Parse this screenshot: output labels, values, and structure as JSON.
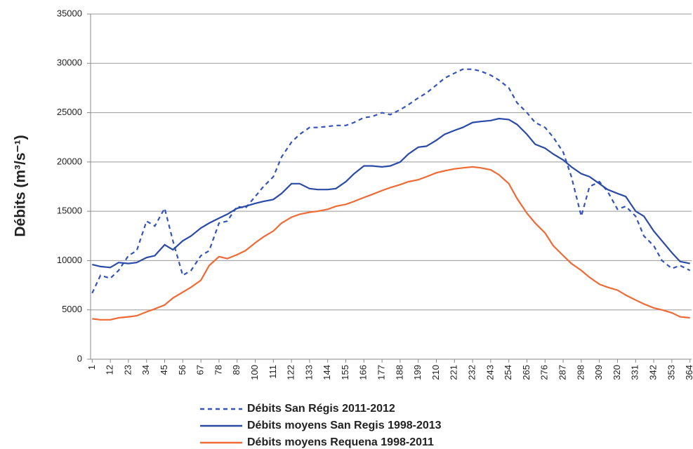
{
  "chart_data": {
    "type": "line",
    "y_label": "Débits (m³/s⁻¹)",
    "x": [
      1,
      6,
      12,
      17,
      23,
      28,
      34,
      39,
      45,
      50,
      56,
      61,
      67,
      72,
      78,
      83,
      89,
      94,
      100,
      105,
      111,
      116,
      122,
      127,
      133,
      138,
      144,
      149,
      155,
      160,
      166,
      171,
      177,
      182,
      188,
      193,
      199,
      204,
      210,
      215,
      221,
      226,
      232,
      237,
      243,
      248,
      254,
      259,
      265,
      270,
      276,
      281,
      287,
      292,
      298,
      303,
      309,
      314,
      320,
      325,
      331,
      336,
      342,
      347,
      353,
      358,
      364
    ],
    "series": [
      {
        "name": "Débits San Régis 2011-2012",
        "color": "#3355bb",
        "dashed": true,
        "values": [
          6700,
          8500,
          8200,
          9000,
          10500,
          11000,
          14000,
          13500,
          15300,
          12000,
          8500,
          9000,
          10500,
          11000,
          13800,
          14000,
          15500,
          15300,
          16500,
          17500,
          18500,
          20500,
          22000,
          22800,
          23500,
          23500,
          23600,
          23700,
          23700,
          24000,
          24500,
          24600,
          25000,
          24800,
          25300,
          25800,
          26500,
          27000,
          27800,
          28500,
          29000,
          29400,
          29400,
          29200,
          28800,
          28300,
          27500,
          26000,
          25000,
          24000,
          23500,
          22500,
          21000,
          18500,
          14500,
          17500,
          18000,
          17000,
          15200,
          15500,
          14500,
          12500,
          11500,
          10000,
          9200,
          9500,
          9000
        ]
      },
      {
        "name": "Débits moyens San Regis 1998-2013",
        "color": "#2a4aa8",
        "dashed": false,
        "values": [
          9600,
          9400,
          9300,
          9800,
          9700,
          9800,
          10300,
          10500,
          11600,
          11100,
          12000,
          12500,
          13300,
          13800,
          14300,
          14700,
          15300,
          15500,
          15800,
          16000,
          16200,
          16800,
          17800,
          17800,
          17300,
          17200,
          17200,
          17300,
          18000,
          18800,
          19600,
          19600,
          19500,
          19600,
          20000,
          20800,
          21500,
          21600,
          22200,
          22800,
          23200,
          23500,
          24000,
          24100,
          24200,
          24400,
          24300,
          23800,
          22800,
          21800,
          21400,
          20800,
          20200,
          19500,
          18800,
          18500,
          17800,
          17200,
          16800,
          16500,
          15000,
          14500,
          13000,
          12000,
          10800,
          9900,
          9700
        ]
      },
      {
        "name": "Débits moyens Requena 1998-2011",
        "color": "#f06a35",
        "dashed": false,
        "values": [
          4100,
          4000,
          4000,
          4200,
          4300,
          4400,
          4800,
          5100,
          5500,
          6200,
          6800,
          7300,
          8000,
          9500,
          10400,
          10200,
          10600,
          11000,
          11800,
          12400,
          13000,
          13800,
          14400,
          14700,
          14900,
          15000,
          15200,
          15500,
          15700,
          16000,
          16400,
          16700,
          17100,
          17400,
          17700,
          18000,
          18200,
          18500,
          18900,
          19100,
          19300,
          19400,
          19500,
          19400,
          19200,
          18700,
          17800,
          16300,
          14800,
          13800,
          12800,
          11500,
          10500,
          9700,
          9000,
          8300,
          7600,
          7300,
          7000,
          6500,
          6000,
          5600,
          5200,
          5000,
          4700,
          4300,
          4200
        ]
      }
    ],
    "xlim": [
      0,
      365
    ],
    "xticks": [
      1,
      12,
      23,
      34,
      45,
      56,
      67,
      78,
      89,
      100,
      111,
      122,
      133,
      144,
      155,
      166,
      177,
      188,
      199,
      210,
      221,
      232,
      243,
      254,
      265,
      276,
      287,
      298,
      309,
      320,
      331,
      342,
      353,
      364
    ],
    "ylim": [
      0,
      35000
    ],
    "yticks": [
      0,
      5000,
      10000,
      15000,
      20000,
      25000,
      30000,
      35000
    ],
    "grid": true,
    "legend": "bottom"
  }
}
